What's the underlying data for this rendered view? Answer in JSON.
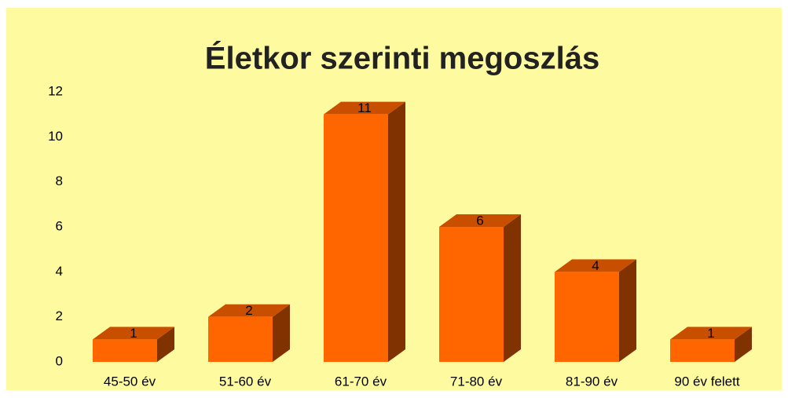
{
  "chart_data": {
    "type": "bar3d",
    "title": "Életkor szerinti megoszlás",
    "categories": [
      "45-50 év",
      "51-60 év",
      "61-70 év",
      "71-80 év",
      "81-90 év",
      "90 év felett"
    ],
    "values": [
      1,
      2,
      11,
      6,
      4,
      1
    ],
    "color": "#ff6600",
    "ylim": [
      0,
      12
    ],
    "yticks": [
      0,
      2,
      4,
      6,
      8,
      10,
      12
    ],
    "grid": false
  }
}
